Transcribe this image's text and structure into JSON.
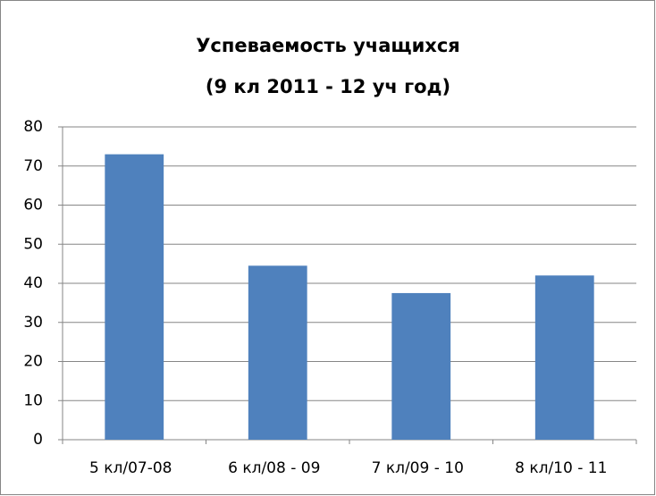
{
  "chart_data": {
    "type": "bar",
    "title": [
      "Успеваемость учащихся",
      "(9 кл 2011 - 12 уч год)"
    ],
    "categories": [
      "5 кл/07-08",
      "6 кл/08 - 09",
      "7 кл/09 - 10",
      "8 кл/10 - 11"
    ],
    "values": [
      73,
      44.5,
      37.5,
      42
    ],
    "color": "#4f81bd",
    "ylim": [
      0,
      80
    ],
    "yticks": [
      0,
      10,
      20,
      30,
      40,
      50,
      60,
      70,
      80
    ],
    "grid": true
  }
}
